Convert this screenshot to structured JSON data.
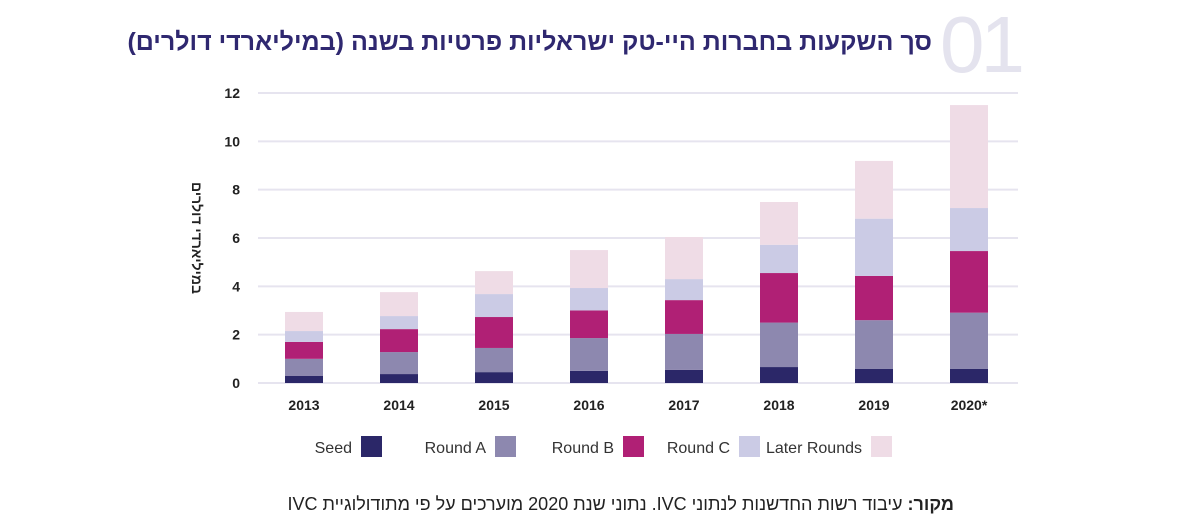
{
  "header": {
    "number": "01",
    "title": "סך השקעות בחברות היי-טק ישראליות פרטיות בשנה (במיליארדי דולרים)"
  },
  "source": {
    "label": "מקור:",
    "text": " עיבוד רשות החדשנות לנתוני IVC. נתוני שנת 2020 מוערכים על פי מתודולוגיית IVC"
  },
  "chart_data": {
    "type": "bar",
    "stacked": true,
    "ylabel": "במיליארדי דולרים",
    "ylim": [
      0,
      12
    ],
    "yticks": [
      0,
      2,
      4,
      6,
      8,
      10,
      12
    ],
    "grid": true,
    "legend": "bottom",
    "categories": [
      "2013",
      "2014",
      "2015",
      "2016",
      "2017",
      "2018",
      "2019",
      "2020*"
    ],
    "series": [
      {
        "name": "Seed",
        "color": "#2b2768",
        "values": [
          0.29,
          0.37,
          0.45,
          0.5,
          0.54,
          0.66,
          0.58,
          0.58
        ]
      },
      {
        "name": "Round A",
        "color": "#8d88af",
        "values": [
          0.71,
          0.91,
          1.0,
          1.36,
          1.49,
          1.84,
          2.02,
          2.33
        ]
      },
      {
        "name": "Round B",
        "color": "#b02075",
        "values": [
          0.7,
          0.95,
          1.28,
          1.14,
          1.4,
          2.05,
          1.83,
          2.55
        ]
      },
      {
        "name": "Round C",
        "color": "#cbcbe5",
        "values": [
          0.45,
          0.54,
          0.95,
          0.93,
          0.87,
          1.17,
          2.37,
          1.78
        ]
      },
      {
        "name": "Later Rounds",
        "color": "#efdce6",
        "values": [
          0.79,
          0.99,
          0.95,
          1.57,
          1.74,
          1.77,
          2.39,
          4.26
        ]
      }
    ]
  }
}
